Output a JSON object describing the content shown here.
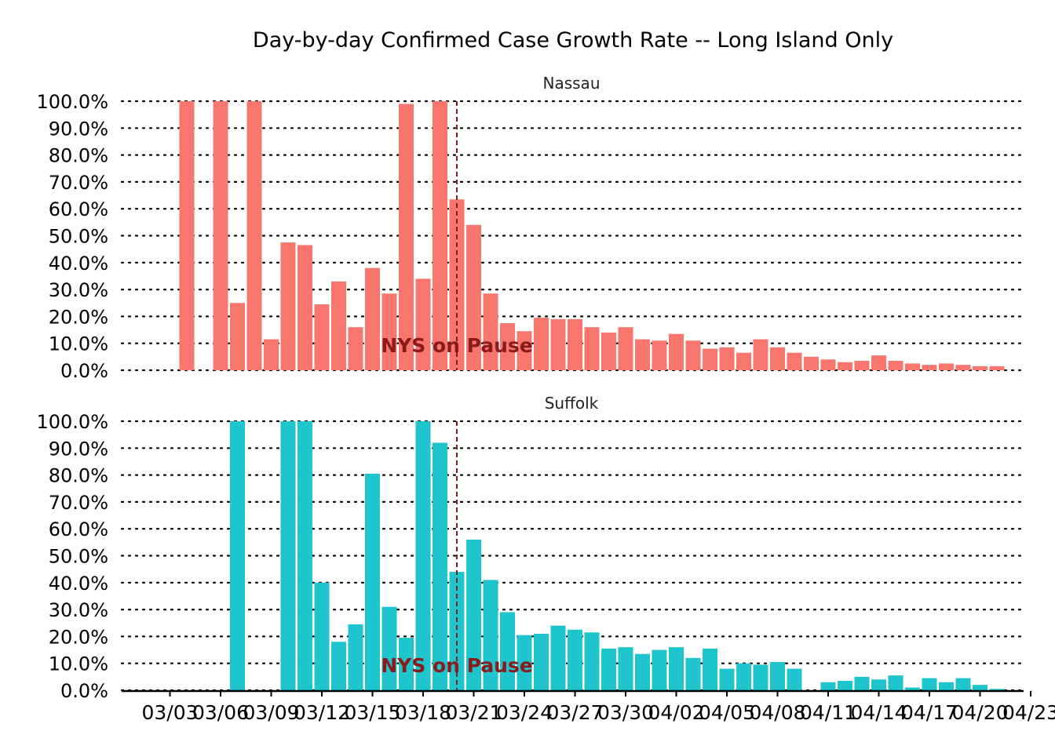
{
  "chart_data": {
    "type": "bar",
    "title": "Day-by-day Confirmed Case Growth Rate -- Long Island Only",
    "x": [
      "03/01",
      "03/02",
      "03/03",
      "03/04",
      "03/05",
      "03/06",
      "03/07",
      "03/08",
      "03/09",
      "03/10",
      "03/11",
      "03/12",
      "03/13",
      "03/14",
      "03/15",
      "03/16",
      "03/17",
      "03/18",
      "03/19",
      "03/20",
      "03/21",
      "03/22",
      "03/23",
      "03/24",
      "03/25",
      "03/26",
      "03/27",
      "03/28",
      "03/29",
      "03/30",
      "03/31",
      "04/01",
      "04/02",
      "04/03",
      "04/04",
      "04/05",
      "04/06",
      "04/07",
      "04/08",
      "04/09",
      "04/10",
      "04/11",
      "04/12",
      "04/13",
      "04/14",
      "04/15",
      "04/16",
      "04/17",
      "04/18",
      "04/19",
      "04/20",
      "04/21",
      "04/22",
      "04/23"
    ],
    "xtick_labels": [
      "03/03",
      "03/06",
      "03/09",
      "03/12",
      "03/15",
      "03/18",
      "03/21",
      "03/24",
      "03/27",
      "03/30",
      "04/02",
      "04/05",
      "04/08",
      "04/11",
      "04/14",
      "04/17",
      "04/20",
      "04/23"
    ],
    "yticks": [
      "0.0%",
      "10.0%",
      "20.0%",
      "30.0%",
      "40.0%",
      "50.0%",
      "60.0%",
      "70.0%",
      "80.0%",
      "90.0%",
      "100.0%"
    ],
    "ylim": [
      0,
      100
    ],
    "grid": "horizontal dotted",
    "series": [
      {
        "name": "Nassau",
        "color": "#f8766d",
        "values": [
          null,
          null,
          null,
          100,
          null,
          100,
          25,
          100,
          11.5,
          47.5,
          46.5,
          24.5,
          33,
          16,
          38,
          28.5,
          99,
          34,
          100,
          63.5,
          54,
          28.5,
          17.5,
          14.5,
          19.5,
          19,
          19,
          16,
          14,
          16,
          11.5,
          11,
          13.5,
          11,
          8,
          8.5,
          6.5,
          11.5,
          8.5,
          6.5,
          5,
          4,
          3,
          3.5,
          5.5,
          3.5,
          2.5,
          2,
          2.5,
          2,
          1.5,
          1.5,
          null,
          null
        ]
      },
      {
        "name": "Suffolk",
        "color": "#1ec5cc",
        "values": [
          null,
          null,
          null,
          null,
          null,
          null,
          100,
          null,
          null,
          100,
          100,
          40,
          18,
          24.5,
          80.5,
          31,
          19.5,
          100,
          92,
          44,
          56,
          41,
          29,
          20.5,
          21,
          24,
          22.5,
          21.5,
          15.5,
          16,
          13.5,
          15,
          16,
          12,
          15.5,
          8,
          10,
          9.5,
          10.5,
          8,
          null,
          3,
          3.5,
          5,
          4,
          5.5,
          1,
          4.5,
          3,
          4.5,
          2,
          0.5,
          null,
          null
        ]
      }
    ],
    "vline": {
      "date": "03/20",
      "color": "#7b1f1f",
      "style": "dashed"
    },
    "annotation": {
      "text": "NYS on Pause",
      "color": "#8b1a1a"
    }
  }
}
